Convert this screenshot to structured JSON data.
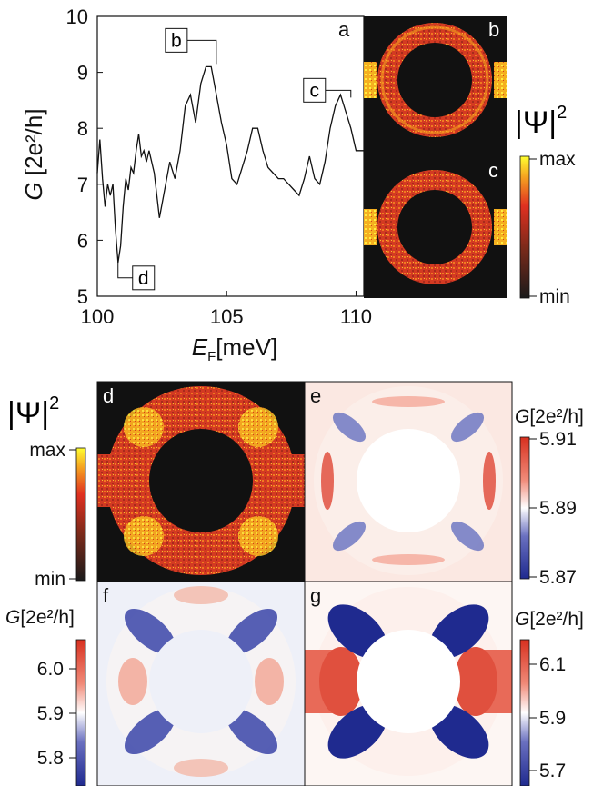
{
  "chart_data": {
    "type": "line",
    "x_label": "E",
    "x_label_subscript": "F",
    "x_label_unit": "[meV]",
    "y_label_italic": "G",
    "y_label_rest": "[2e²/h]",
    "xlim": [
      100,
      110.3
    ],
    "ylim": [
      5,
      10
    ],
    "x_ticks": [
      "100",
      "105",
      "110"
    ],
    "y_ticks": [
      "5",
      "6",
      "7",
      "8",
      "9",
      "10"
    ],
    "x": [
      100.0,
      100.1,
      100.2,
      100.3,
      100.4,
      100.5,
      100.6,
      100.7,
      100.8,
      100.9,
      101.0,
      101.1,
      101.2,
      101.3,
      101.4,
      101.5,
      101.6,
      101.7,
      101.8,
      101.9,
      102.0,
      102.2,
      102.4,
      102.6,
      102.8,
      103.0,
      103.2,
      103.4,
      103.6,
      103.8,
      104.0,
      104.2,
      104.4,
      104.6,
      104.8,
      105.0,
      105.2,
      105.4,
      105.6,
      105.8,
      106.0,
      106.2,
      106.4,
      106.6,
      106.8,
      107.0,
      107.2,
      107.4,
      107.6,
      107.8,
      108.0,
      108.2,
      108.4,
      108.6,
      108.8,
      109.0,
      109.2,
      109.4,
      109.6,
      109.8,
      110.0,
      110.2,
      110.3
    ],
    "y": [
      7.2,
      7.8,
      7.1,
      6.6,
      7.0,
      6.8,
      7.0,
      6.2,
      5.6,
      5.9,
      6.6,
      7.1,
      6.9,
      7.3,
      7.2,
      7.6,
      7.9,
      7.5,
      7.6,
      7.4,
      7.6,
      7.2,
      6.4,
      6.9,
      7.4,
      7.1,
      7.6,
      8.4,
      8.6,
      8.1,
      8.8,
      9.1,
      9.1,
      8.6,
      8.1,
      7.7,
      7.1,
      7.0,
      7.3,
      7.6,
      8.0,
      8.0,
      7.6,
      7.3,
      7.2,
      7.1,
      7.1,
      7.0,
      6.9,
      6.8,
      7.1,
      7.5,
      7.1,
      7.0,
      7.4,
      8.0,
      8.4,
      8.6,
      8.3,
      8.0,
      7.6,
      7.6,
      7.6
    ],
    "callouts": [
      {
        "label": "b",
        "x": 104.6,
        "y": 9.15
      },
      {
        "label": "c",
        "x": 109.8,
        "y": 8.55
      },
      {
        "label": "d",
        "x": 100.8,
        "y": 5.62
      }
    ]
  },
  "panel_a_letter": "a",
  "panel_letters": {
    "b": "b",
    "c": "c",
    "d": "d",
    "e": "e",
    "f": "f",
    "g": "g"
  },
  "psi_label": "|Ψ|",
  "psi_exponent": "2",
  "colorbar_psi": {
    "max": "max",
    "min": "min"
  },
  "g_unit_italic": "G",
  "g_unit_rest": "[2e²/h]",
  "colorbar_e": {
    "ticks": [
      "5.91",
      "5.89",
      "5.87"
    ]
  },
  "colorbar_f": {
    "ticks": [
      "6.0",
      "5.9",
      "5.8"
    ]
  },
  "colorbar_g": {
    "ticks": [
      "6.1",
      "5.9",
      "5.7"
    ]
  },
  "colors": {
    "hot_low": "#1a1a1a",
    "hot_mid": "#e03020",
    "hot_high": "#ffff30",
    "div_high": "#d7301f",
    "div_mid": "#ffffff",
    "div_low": "#1f2a8f"
  }
}
